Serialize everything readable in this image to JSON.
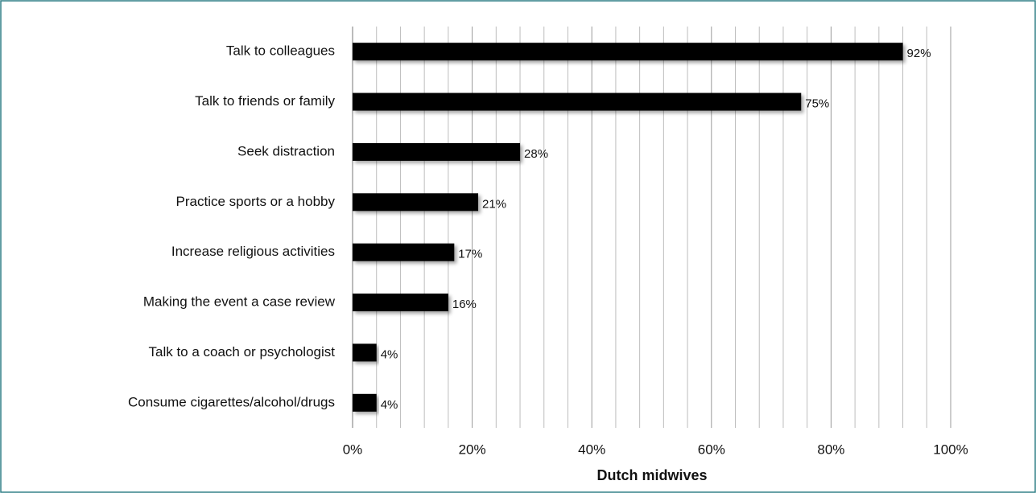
{
  "chart_data": {
    "type": "bar",
    "orientation": "horizontal",
    "x_axis_label": "Dutch midwives",
    "categories": [
      "Talk to colleagues",
      "Talk to friends or family",
      "Seek distraction",
      "Practice sports or a hobby",
      "Increase religious activities",
      "Making the event a case review",
      "Talk to a coach or psychologist",
      "Consume cigarettes/alcohol/drugs"
    ],
    "values": [
      92,
      75,
      28,
      21,
      17,
      16,
      4,
      4
    ],
    "value_labels": [
      "92%",
      "75%",
      "28%",
      "21%",
      "17%",
      "16%",
      "4%",
      "4%"
    ],
    "color": "#000000",
    "xlim": [
      0,
      100
    ],
    "xticks": [
      {
        "value": 0,
        "label": "0%"
      },
      {
        "value": 20,
        "label": "20%"
      },
      {
        "value": 40,
        "label": "40%"
      },
      {
        "value": 60,
        "label": "60%"
      },
      {
        "value": 80,
        "label": "80%"
      },
      {
        "value": 100,
        "label": "100%"
      }
    ],
    "x_minor_ticks": [
      4,
      8,
      12,
      16,
      24,
      28,
      32,
      36,
      44,
      48,
      52,
      56,
      64,
      68,
      72,
      76,
      84,
      88,
      92,
      96
    ],
    "grid": true
  }
}
